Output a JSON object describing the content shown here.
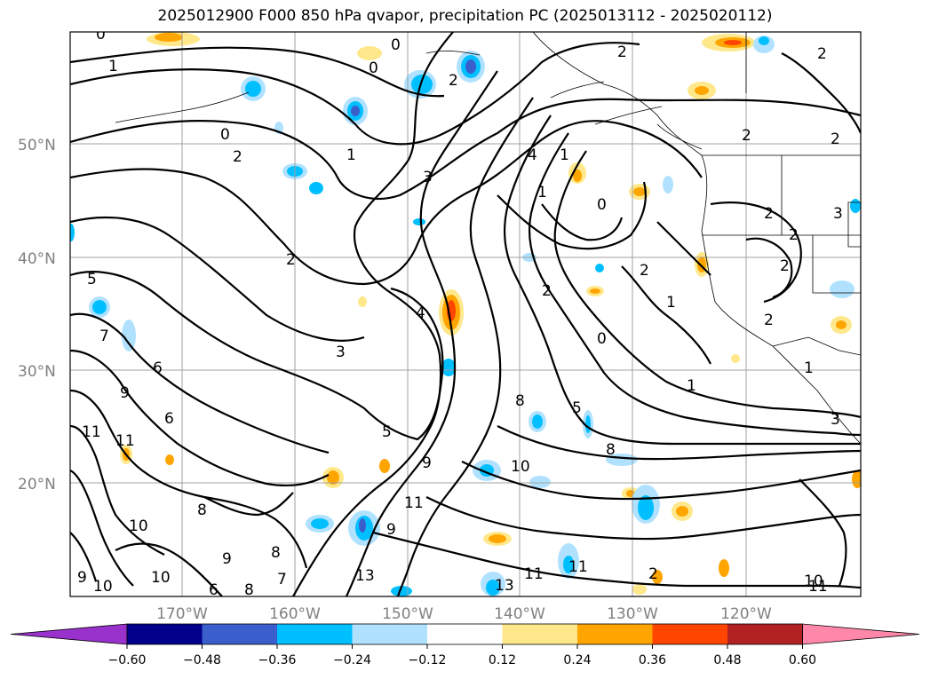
{
  "title": "2025012900 F000 850 hPa qvapor, precipitation PC (2025013112 - 2025020112)",
  "map": {
    "lat_labels": [
      "50°N",
      "40°N",
      "30°N",
      "20°N"
    ],
    "lon_labels": [
      "170°W",
      "160°W",
      "150°W",
      "140°W",
      "130°W",
      "120°W"
    ],
    "contour_labels": [
      "0",
      "1",
      "2",
      "3",
      "4",
      "5",
      "6",
      "7",
      "8",
      "9",
      "10",
      "11",
      "13"
    ]
  },
  "colorbar": {
    "ticks": [
      "−0.60",
      "−0.48",
      "−0.36",
      "−0.24",
      "−0.12",
      "0.12",
      "0.24",
      "0.36",
      "0.48",
      "0.60"
    ],
    "colors": [
      "#9932cc",
      "#00008b",
      "#3a5fcd",
      "#00bfff",
      "#b0e2ff",
      "#ffffff",
      "#ffe88c",
      "#ffa500",
      "#ff4500",
      "#b22222",
      "#ff88aa"
    ],
    "extend": "both"
  },
  "colors": {
    "grid": "#a0a0a0",
    "frame": "#000000"
  }
}
